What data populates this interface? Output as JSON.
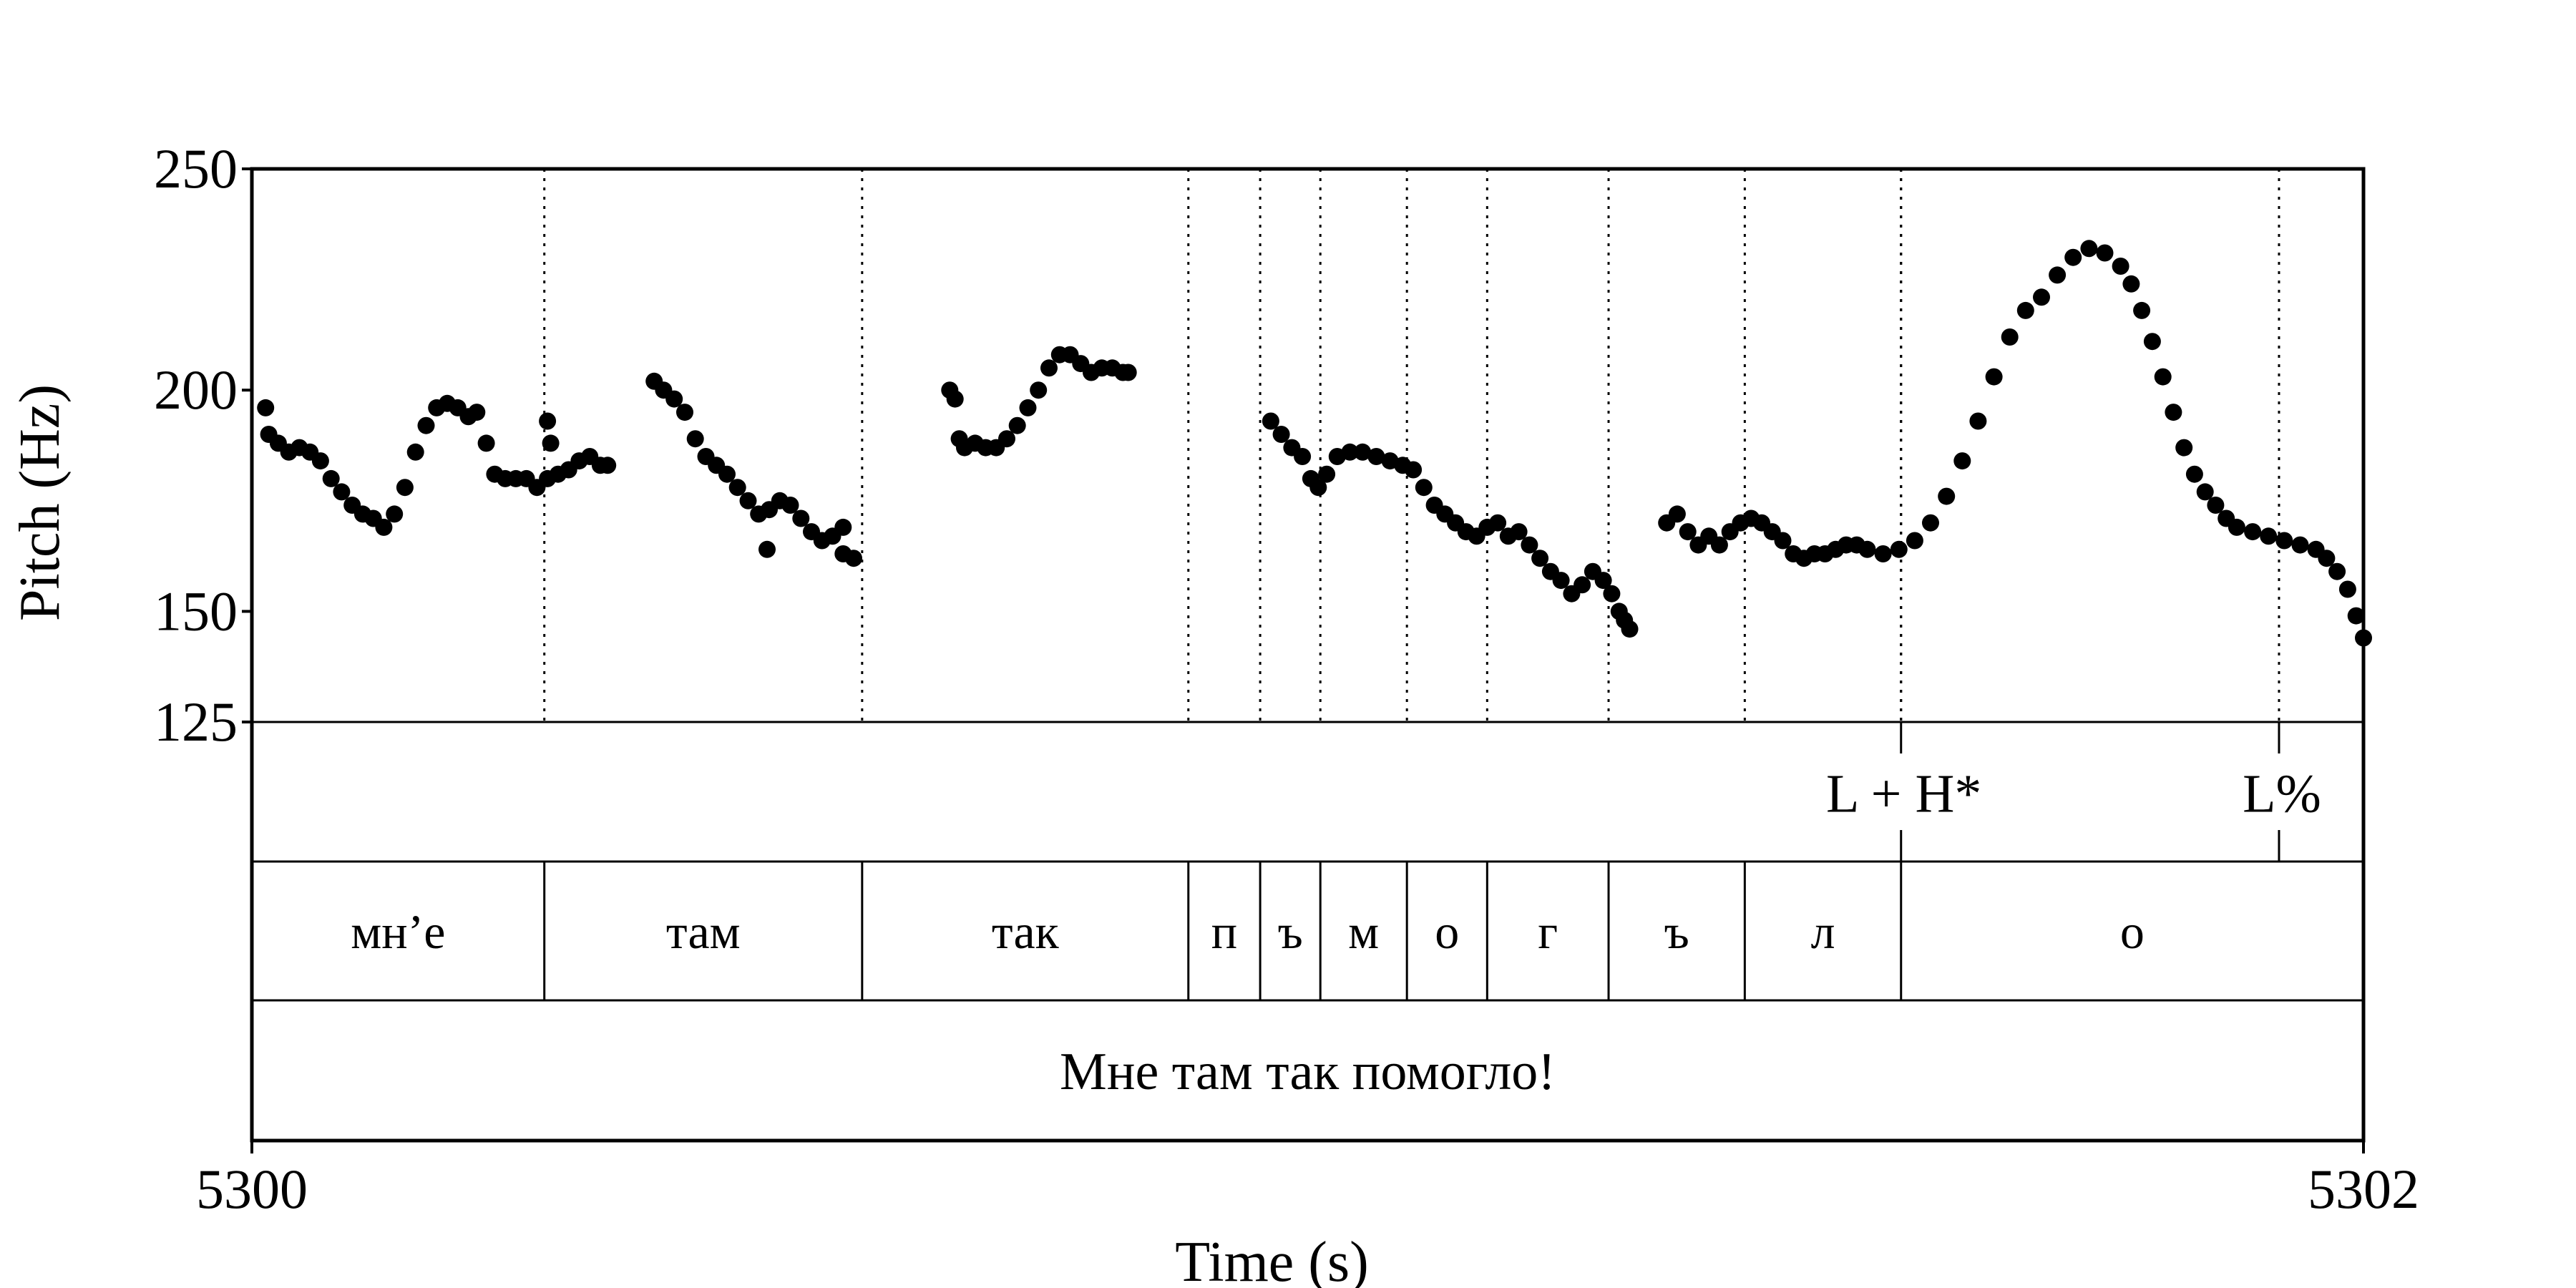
{
  "chart_data": {
    "type": "scatter",
    "ylabel": "Pitch (Hz)",
    "xlabel": "Time (s)",
    "ylim": [
      125,
      250
    ],
    "yticks": [
      "125",
      "150",
      "200",
      "250"
    ],
    "xlim": [
      5300,
      5302
    ],
    "xticks": [
      "5300",
      "5302"
    ],
    "segments": [
      {
        "label": "мн’е",
        "start": 5300.0,
        "end": 5300.277
      },
      {
        "label": "там",
        "start": 5300.277,
        "end": 5300.578
      },
      {
        "label": "так",
        "start": 5300.578,
        "end": 5300.887
      },
      {
        "label": "п",
        "start": 5300.887,
        "end": 5300.955
      },
      {
        "label": "ъ",
        "start": 5300.955,
        "end": 5301.012
      },
      {
        "label": "м",
        "start": 5301.012,
        "end": 5301.094
      },
      {
        "label": "о",
        "start": 5301.094,
        "end": 5301.17
      },
      {
        "label": "г",
        "start": 5301.17,
        "end": 5301.285
      },
      {
        "label": "ъ",
        "start": 5301.285,
        "end": 5301.414
      },
      {
        "label": "л",
        "start": 5301.414,
        "end": 5301.562
      },
      {
        "label": "о",
        "start": 5301.562,
        "end": 5302.0
      }
    ],
    "tones": [
      {
        "label": "L + H*",
        "time": 5301.562
      },
      {
        "label": "L%",
        "time": 5301.92
      }
    ],
    "sentence": "Мне там так помогло!",
    "pitch_contour": [
      [
        [
          5300.013,
          196
        ],
        [
          5300.016,
          190
        ],
        [
          5300.025,
          188
        ],
        [
          5300.035,
          186
        ],
        [
          5300.045,
          187
        ],
        [
          5300.055,
          186
        ],
        [
          5300.065,
          184
        ],
        [
          5300.075,
          180
        ],
        [
          5300.085,
          177
        ],
        [
          5300.095,
          174
        ],
        [
          5300.105,
          172
        ],
        [
          5300.115,
          171
        ],
        [
          5300.125,
          169
        ],
        [
          5300.135,
          172
        ],
        [
          5300.145,
          178
        ],
        [
          5300.155,
          186
        ],
        [
          5300.165,
          192
        ],
        [
          5300.175,
          196
        ],
        [
          5300.185,
          197
        ],
        [
          5300.195,
          196
        ],
        [
          5300.205,
          194
        ],
        [
          5300.213,
          195
        ],
        [
          5300.222,
          188
        ],
        [
          5300.23,
          181
        ],
        [
          5300.24,
          180
        ],
        [
          5300.25,
          180
        ],
        [
          5300.26,
          180
        ],
        [
          5300.27,
          178
        ],
        [
          5300.28,
          180
        ],
        [
          5300.28,
          193
        ],
        [
          5300.283,
          188
        ],
        [
          5300.29,
          181
        ],
        [
          5300.3,
          182
        ],
        [
          5300.31,
          184
        ],
        [
          5300.32,
          185
        ],
        [
          5300.33,
          183
        ],
        [
          5300.337,
          183
        ]
      ],
      [
        [
          5300.381,
          202
        ],
        [
          5300.39,
          200
        ],
        [
          5300.4,
          198
        ],
        [
          5300.41,
          195
        ],
        [
          5300.42,
          189
        ],
        [
          5300.43,
          185
        ],
        [
          5300.44,
          183
        ],
        [
          5300.45,
          181
        ],
        [
          5300.46,
          178
        ],
        [
          5300.47,
          175
        ],
        [
          5300.48,
          172
        ],
        [
          5300.49,
          173
        ],
        [
          5300.5,
          175
        ],
        [
          5300.51,
          174
        ],
        [
          5300.52,
          171
        ],
        [
          5300.53,
          168
        ],
        [
          5300.54,
          166
        ],
        [
          5300.55,
          167
        ],
        [
          5300.56,
          163
        ],
        [
          5300.57,
          162
        ],
        [
          5300.488,
          164
        ],
        [
          5300.56,
          169
        ]
      ],
      [
        [
          5300.661,
          200
        ],
        [
          5300.666,
          198
        ],
        [
          5300.67,
          189
        ],
        [
          5300.675,
          187
        ],
        [
          5300.685,
          188
        ],
        [
          5300.695,
          187
        ],
        [
          5300.705,
          187
        ],
        [
          5300.715,
          189
        ],
        [
          5300.725,
          192
        ],
        [
          5300.735,
          196
        ],
        [
          5300.745,
          200
        ],
        [
          5300.755,
          205
        ],
        [
          5300.765,
          208
        ],
        [
          5300.775,
          208
        ],
        [
          5300.785,
          206
        ],
        [
          5300.795,
          204
        ],
        [
          5300.805,
          205
        ],
        [
          5300.815,
          205
        ],
        [
          5300.825,
          204
        ],
        [
          5300.83,
          204
        ]
      ],
      [
        [
          5300.965,
          193
        ],
        [
          5300.975,
          190
        ],
        [
          5300.985,
          187
        ],
        [
          5300.995,
          185
        ],
        [
          5301.003,
          180
        ],
        [
          5301.01,
          178
        ],
        [
          5301.018,
          181
        ],
        [
          5301.028,
          185
        ],
        [
          5301.04,
          186
        ],
        [
          5301.052,
          186
        ],
        [
          5301.065,
          185
        ],
        [
          5301.078,
          184
        ],
        [
          5301.09,
          183
        ],
        [
          5301.1,
          182
        ],
        [
          5301.11,
          178
        ],
        [
          5301.12,
          174
        ],
        [
          5301.13,
          172
        ],
        [
          5301.14,
          170
        ],
        [
          5301.15,
          168
        ],
        [
          5301.16,
          167
        ],
        [
          5301.17,
          169
        ],
        [
          5301.18,
          170
        ],
        [
          5301.19,
          167
        ],
        [
          5301.2,
          168
        ],
        [
          5301.21,
          165
        ],
        [
          5301.22,
          162
        ],
        [
          5301.23,
          159
        ],
        [
          5301.24,
          157
        ],
        [
          5301.25,
          154
        ],
        [
          5301.26,
          156
        ],
        [
          5301.27,
          159
        ],
        [
          5301.28,
          157
        ],
        [
          5301.288,
          154
        ],
        [
          5301.295,
          150
        ],
        [
          5301.3,
          148
        ],
        [
          5301.305,
          146
        ]
      ],
      [
        [
          5301.34,
          170
        ],
        [
          5301.35,
          172
        ],
        [
          5301.36,
          168
        ],
        [
          5301.37,
          165
        ],
        [
          5301.38,
          167
        ],
        [
          5301.39,
          165
        ],
        [
          5301.4,
          168
        ],
        [
          5301.41,
          170
        ],
        [
          5301.42,
          171
        ],
        [
          5301.43,
          170
        ],
        [
          5301.44,
          168
        ],
        [
          5301.45,
          166
        ],
        [
          5301.46,
          163
        ],
        [
          5301.47,
          162
        ],
        [
          5301.48,
          163
        ],
        [
          5301.49,
          163
        ],
        [
          5301.5,
          164
        ],
        [
          5301.51,
          165
        ],
        [
          5301.52,
          165
        ],
        [
          5301.53,
          164
        ],
        [
          5301.545,
          163
        ],
        [
          5301.56,
          164
        ],
        [
          5301.575,
          166
        ],
        [
          5301.59,
          170
        ],
        [
          5301.605,
          176
        ],
        [
          5301.62,
          184
        ],
        [
          5301.635,
          193
        ],
        [
          5301.65,
          203
        ],
        [
          5301.665,
          212
        ],
        [
          5301.68,
          218
        ],
        [
          5301.695,
          221
        ],
        [
          5301.71,
          226
        ],
        [
          5301.725,
          230
        ],
        [
          5301.74,
          232
        ],
        [
          5301.755,
          231
        ],
        [
          5301.77,
          228
        ],
        [
          5301.78,
          224
        ],
        [
          5301.79,
          218
        ],
        [
          5301.8,
          211
        ],
        [
          5301.81,
          203
        ],
        [
          5301.82,
          195
        ],
        [
          5301.83,
          187
        ],
        [
          5301.84,
          181
        ],
        [
          5301.85,
          177
        ],
        [
          5301.86,
          174
        ],
        [
          5301.87,
          171
        ],
        [
          5301.88,
          169
        ],
        [
          5301.895,
          168
        ],
        [
          5301.91,
          167
        ],
        [
          5301.925,
          166
        ],
        [
          5301.94,
          165
        ],
        [
          5301.955,
          164
        ],
        [
          5301.965,
          162
        ],
        [
          5301.975,
          159
        ],
        [
          5301.985,
          155
        ],
        [
          5301.993,
          149
        ],
        [
          5302.0,
          144
        ]
      ]
    ]
  }
}
